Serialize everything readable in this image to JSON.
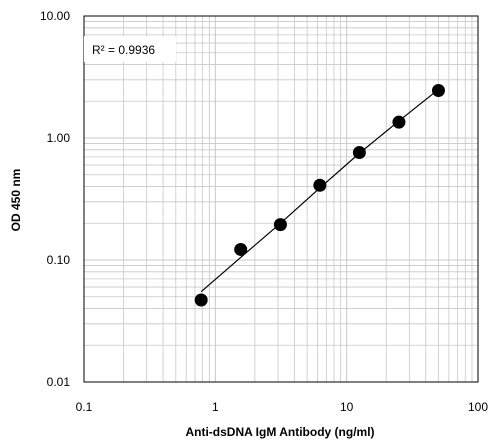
{
  "chart_data": {
    "type": "scatter",
    "x_scale": "log",
    "y_scale": "log",
    "xlim": [
      0.1,
      100
    ],
    "ylim": [
      0.01,
      10
    ],
    "xlabel": "Anti-dsDNA IgM Antibody (ng/ml)",
    "ylabel": "OD 450 nm",
    "x_tick_labels": [
      "0.1",
      "1",
      "10",
      "100"
    ],
    "y_tick_labels": [
      "0.01",
      "0.10",
      "1.00",
      "10.00"
    ],
    "grid": true,
    "annotation": "R² = 0.9936",
    "series": [
      {
        "x": [
          0.78,
          1.56,
          3.13,
          6.25,
          12.5,
          25,
          50
        ],
        "y": [
          0.047,
          0.122,
          0.195,
          0.41,
          0.76,
          1.35,
          2.45
        ]
      }
    ],
    "trendline": {
      "x": [
        0.78,
        1.56,
        3.13,
        6.25,
        12.5,
        25,
        50
      ],
      "y": [
        0.055,
        0.105,
        0.2,
        0.39,
        0.75,
        1.38,
        2.5
      ]
    },
    "colors": {
      "marker": "#000000",
      "line": "#000000",
      "grid": "#c8c8c8",
      "axis": "#000000"
    }
  }
}
